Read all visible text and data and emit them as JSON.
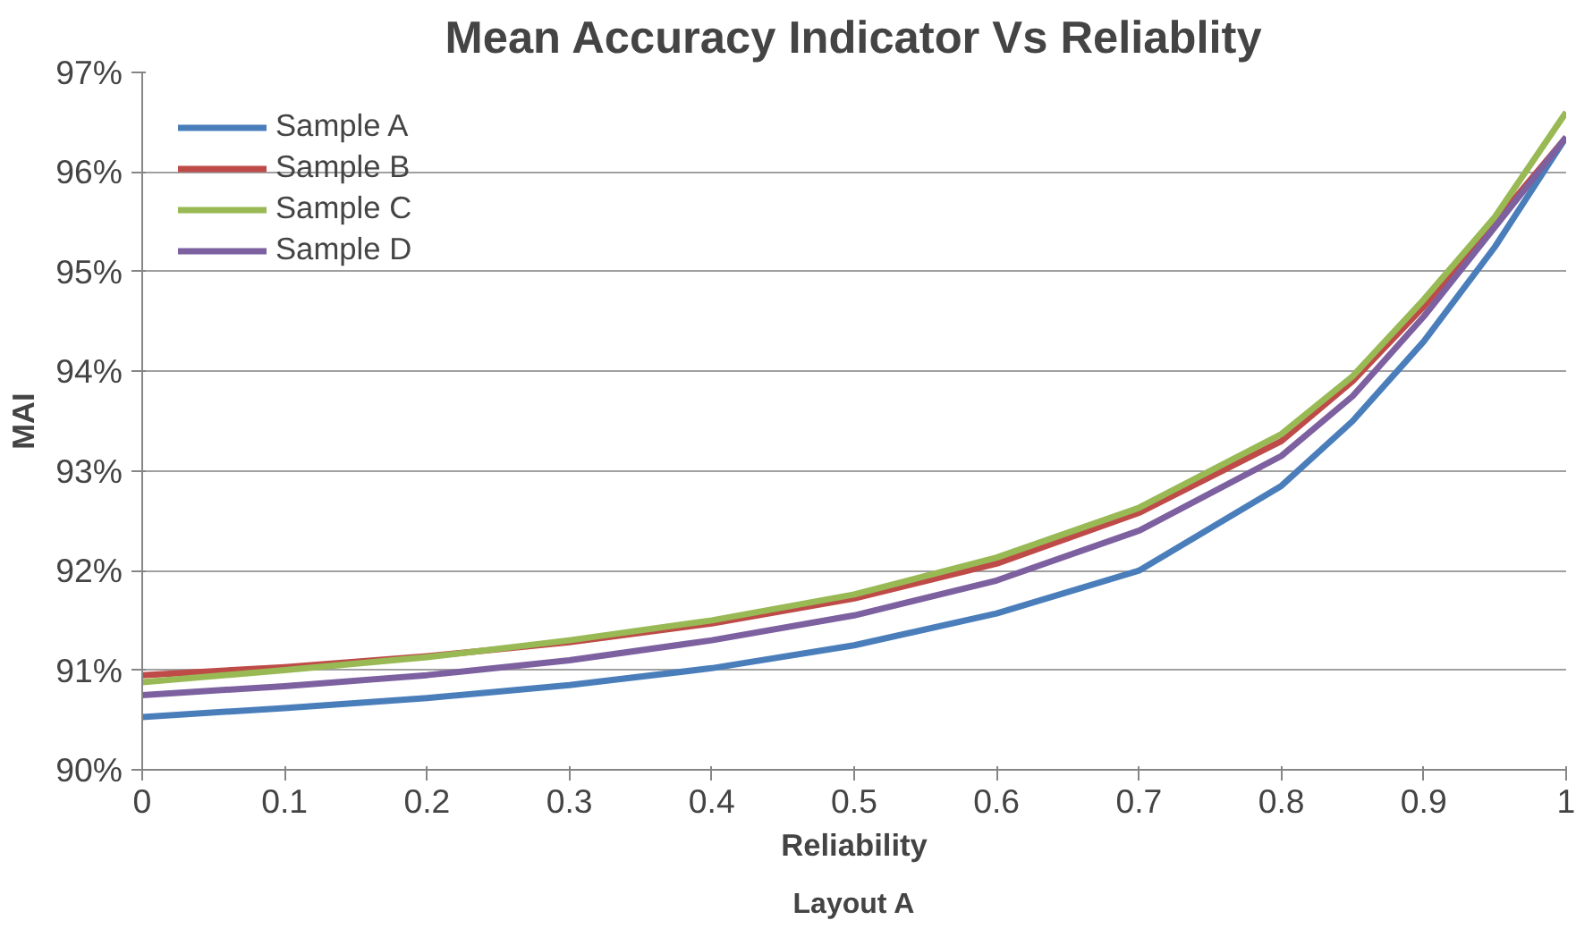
{
  "chart_data": {
    "type": "line",
    "title": "Mean Accuracy Indicator Vs Reliablity",
    "xlabel": "Reliability",
    "ylabel": "MAI",
    "annotations": [
      "Layout A"
    ],
    "x": [
      0,
      0.1,
      0.2,
      0.3,
      0.4,
      0.5,
      0.6,
      0.7,
      0.8,
      0.85,
      0.9,
      0.95,
      1
    ],
    "series": [
      {
        "name": "Sample A",
        "color": "#4a7ebb",
        "values": [
          90.53,
          90.62,
          90.72,
          90.85,
          91.02,
          91.25,
          91.57,
          92.0,
          92.85,
          93.5,
          94.3,
          95.25,
          96.35
        ]
      },
      {
        "name": "Sample B",
        "color": "#be4b48",
        "values": [
          90.95,
          91.03,
          91.14,
          91.28,
          91.47,
          91.72,
          92.07,
          92.58,
          93.3,
          93.9,
          94.65,
          95.5,
          96.35
        ]
      },
      {
        "name": "Sample C",
        "color": "#98b954",
        "values": [
          90.88,
          91.0,
          91.13,
          91.3,
          91.5,
          91.76,
          92.13,
          92.63,
          93.37,
          93.95,
          94.72,
          95.55,
          96.6
        ]
      },
      {
        "name": "Sample D",
        "color": "#7d60a0",
        "values": [
          90.75,
          90.84,
          90.95,
          91.1,
          91.3,
          91.55,
          91.9,
          92.4,
          93.15,
          93.75,
          94.55,
          95.45,
          96.35
        ]
      }
    ],
    "xlim": [
      0,
      1
    ],
    "xticks": [
      0,
      0.1,
      0.2,
      0.3,
      0.4,
      0.5,
      0.6,
      0.7,
      0.8,
      0.9,
      1
    ],
    "ylim": [
      90,
      97
    ],
    "yticks": [
      {
        "value": 90,
        "label": "90%"
      },
      {
        "value": 91,
        "label": "91%"
      },
      {
        "value": 92,
        "label": "92%"
      },
      {
        "value": 93,
        "label": "93%"
      },
      {
        "value": 94,
        "label": "94%"
      },
      {
        "value": 95,
        "label": "95%"
      },
      {
        "value": 96,
        "label": "96%"
      },
      {
        "value": 97,
        "label": "97%"
      }
    ],
    "grid": "y",
    "legend": "top left",
    "marker": "none",
    "line_style": "solid"
  }
}
